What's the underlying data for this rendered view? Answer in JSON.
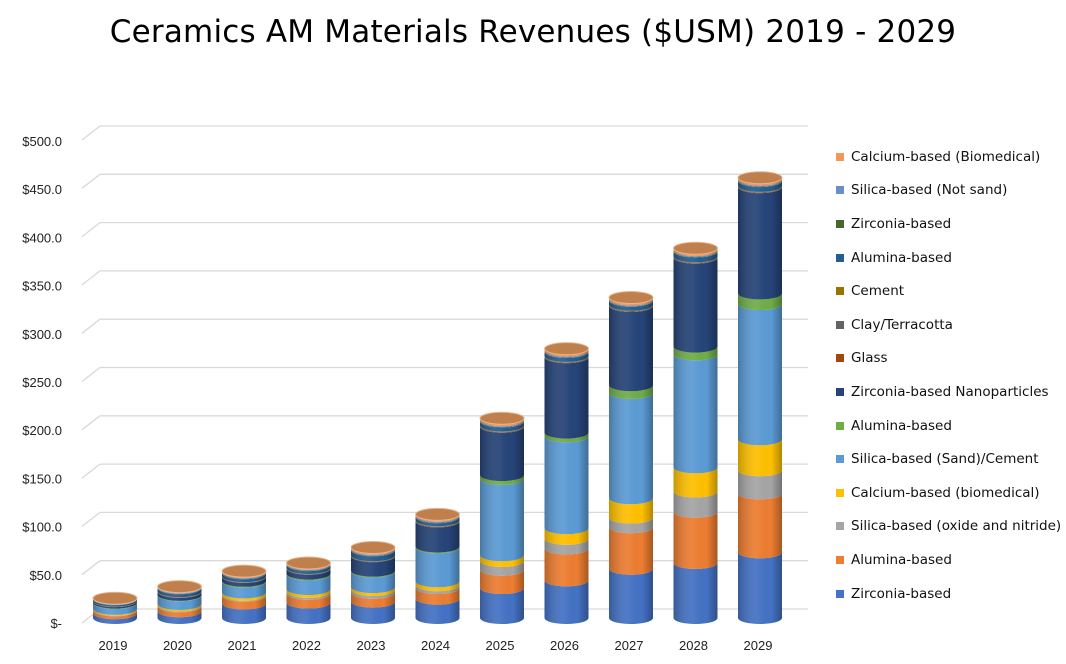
{
  "chart_data": {
    "type": "bar",
    "stacked": true,
    "style": "3d-cylinder",
    "title": "Ceramics AM Materials Revenues ($USM) 2019 - 2029",
    "xlabel": "",
    "ylabel": "",
    "ylim": [
      0,
      500
    ],
    "y_ticks": [
      "$-",
      "$50.0",
      "$100.0",
      "$150.0",
      "$200.0",
      "$250.0",
      "$300.0",
      "$350.0",
      "$400.0",
      "$450.0",
      "$500.0"
    ],
    "grid": true,
    "legend_position": "right",
    "categories": [
      "2019",
      "2020",
      "2021",
      "2022",
      "2023",
      "2024",
      "2025",
      "2026",
      "2027",
      "2028",
      "2029"
    ],
    "series": [
      {
        "name": "Zirconia-based",
        "color": "#4472C4",
        "values": [
          5,
          7,
          15,
          16,
          17,
          20,
          31,
          39,
          51,
          57,
          68
        ]
      },
      {
        "name": "Alumina-based",
        "color": "#ED7D31",
        "values": [
          3,
          5,
          8,
          9,
          9,
          11,
          19,
          33,
          43,
          53,
          61
        ]
      },
      {
        "name": "Silica-based (oxide and nitride)",
        "color": "#A5A5A5",
        "values": [
          0.5,
          1,
          1,
          2,
          3,
          3,
          9,
          10,
          10,
          21,
          24
        ]
      },
      {
        "name": "Calcium-based (biomedical)",
        "color": "#FFC000",
        "values": [
          1,
          1.5,
          2.5,
          3,
          3,
          4,
          6,
          11,
          20,
          25,
          32
        ]
      },
      {
        "name": "Silica-based (Sand)/Cement",
        "color": "#5B9BD5",
        "values": [
          6,
          9,
          11,
          15,
          16,
          35,
          79,
          95,
          109,
          117,
          140
        ]
      },
      {
        "name": "Alumina-based",
        "color": "#70AD47",
        "values": [
          0.5,
          0.5,
          1,
          1,
          1,
          1,
          4,
          4,
          8,
          8,
          11
        ]
      },
      {
        "name": "Zirconia-based Nanoparticles",
        "color": "#264478",
        "values": [
          1.5,
          3,
          4,
          5,
          15,
          26,
          50,
          78,
          82,
          92,
          110
        ]
      },
      {
        "name": "Glass",
        "color": "#9E480E",
        "values": [
          0.2,
          0.3,
          0.3,
          0.3,
          0.4,
          0.5,
          0.5,
          0.5,
          0.5,
          0.5,
          0.5
        ]
      },
      {
        "name": "Clay/Terracotta",
        "color": "#636363",
        "values": [
          0.2,
          0.3,
          0.3,
          0.3,
          0.4,
          0.5,
          0.5,
          0.5,
          0.5,
          0.5,
          0.5
        ]
      },
      {
        "name": "Cement",
        "color": "#997300",
        "values": [
          0.1,
          0.2,
          0.2,
          0.2,
          0.2,
          0.3,
          0.3,
          0.3,
          0.3,
          0.3,
          0.3
        ]
      },
      {
        "name": "Alumina-based",
        "color": "#255E91",
        "values": [
          1.5,
          3,
          3,
          3,
          5,
          3,
          4,
          4,
          4,
          5,
          5
        ]
      },
      {
        "name": "Zirconia-based",
        "color": "#43682B",
        "values": [
          0.2,
          0.3,
          0.4,
          0.4,
          0.5,
          0.5,
          0.5,
          0.5,
          0.5,
          0.5,
          0.5
        ]
      },
      {
        "name": "Silica-based (Not sand)",
        "color": "#698ED0",
        "values": [
          0.3,
          0.6,
          0.8,
          0.8,
          1,
          1,
          1,
          1,
          1,
          1,
          1
        ]
      },
      {
        "name": "Calcium-based (Biomedical)",
        "color": "#F1975A",
        "values": [
          0.5,
          0.8,
          1,
          1,
          1.5,
          1.5,
          2,
          2,
          2,
          2,
          2
        ]
      }
    ]
  }
}
